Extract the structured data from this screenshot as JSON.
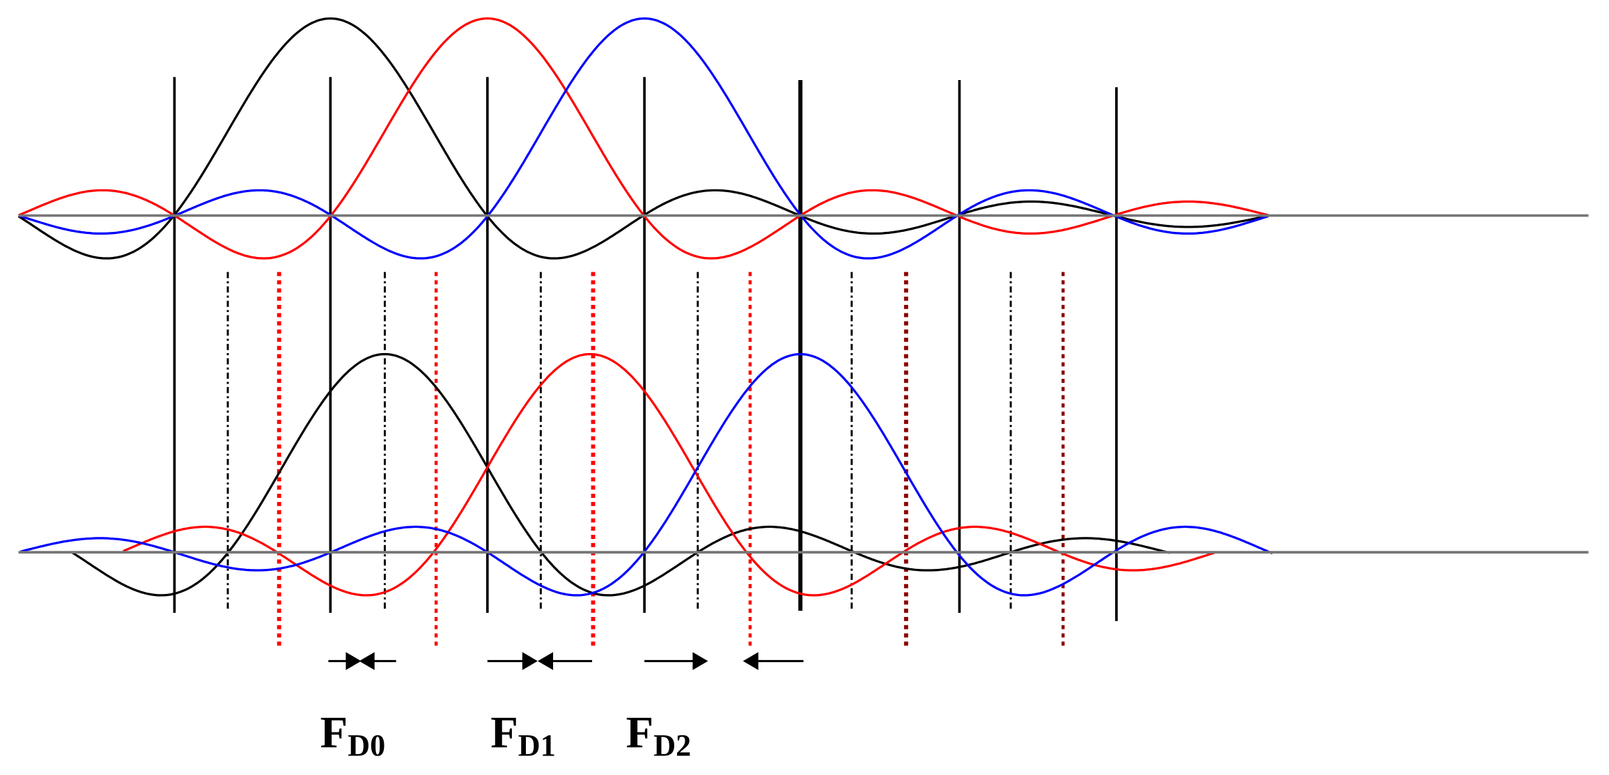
{
  "labels": [
    {
      "main": "F",
      "sub": "D0"
    },
    {
      "main": "F",
      "sub": "D1"
    },
    {
      "main": "F",
      "sub": "D2"
    }
  ]
}
